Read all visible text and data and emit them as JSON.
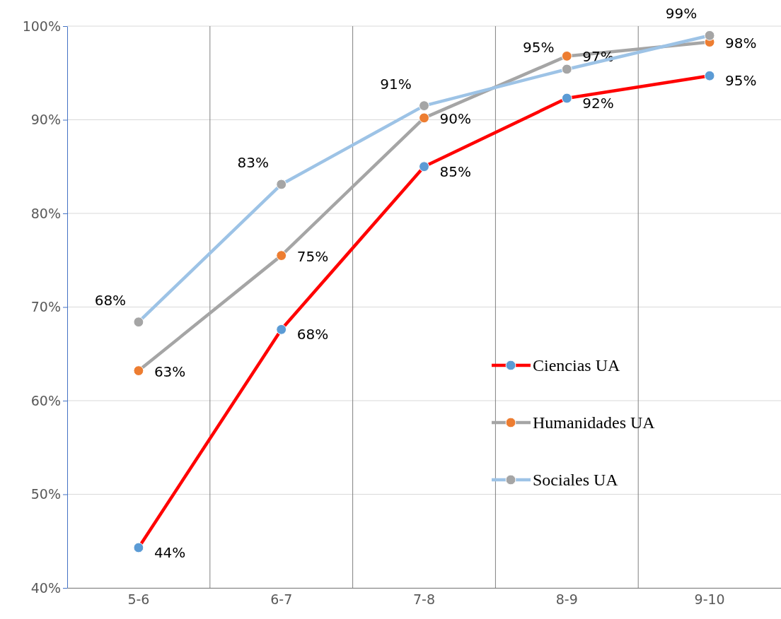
{
  "chart_data": {
    "type": "line",
    "categories": [
      "5-6",
      "6-7",
      "7-8",
      "8-9",
      "9-10"
    ],
    "ylim": [
      40,
      100
    ],
    "yticks": [
      {
        "value": 40,
        "label": "40%"
      },
      {
        "value": 50,
        "label": "50%"
      },
      {
        "value": 60,
        "label": "60%"
      },
      {
        "value": 70,
        "label": "70%"
      },
      {
        "value": 80,
        "label": "80%"
      },
      {
        "value": 90,
        "label": "90%"
      },
      {
        "value": 100,
        "label": "100%"
      }
    ],
    "grid": true,
    "legend": "right",
    "marker": "circle",
    "line_style": "solid",
    "series": [
      {
        "name": "Ciencias UA",
        "color": "#ff0000",
        "colors": [
          "#5b9bd5",
          "#5b9bd5",
          "#5b9bd5",
          "#5b9bd5",
          "#5b9bd5"
        ],
        "values": [
          44.3,
          67.6,
          85.0,
          92.3,
          94.7
        ],
        "value_labels": [
          "44%",
          "68%",
          "85%",
          "92%",
          "95%"
        ]
      },
      {
        "name": "Humanidades UA",
        "color": "#a5a5a5",
        "colors": [
          "#ed7d31",
          "#ed7d31",
          "#ed7d31",
          "#ed7d31",
          "#ed7d31"
        ],
        "values": [
          63.2,
          75.5,
          90.2,
          96.8,
          98.3
        ],
        "value_labels": [
          "63%",
          "75%",
          "90%",
          "97%",
          "98%"
        ]
      },
      {
        "name": "Sociales UA",
        "color": "#9dc3e6",
        "colors": [
          "#a5a5a5",
          "#a5a5a5",
          "#a5a5a5",
          "#a5a5a5",
          "#a5a5a5"
        ],
        "values": [
          68.4,
          83.1,
          91.5,
          95.4,
          99.0
        ],
        "value_labels": [
          "68%",
          "83%",
          "91%",
          "95%",
          "99%"
        ]
      }
    ]
  }
}
